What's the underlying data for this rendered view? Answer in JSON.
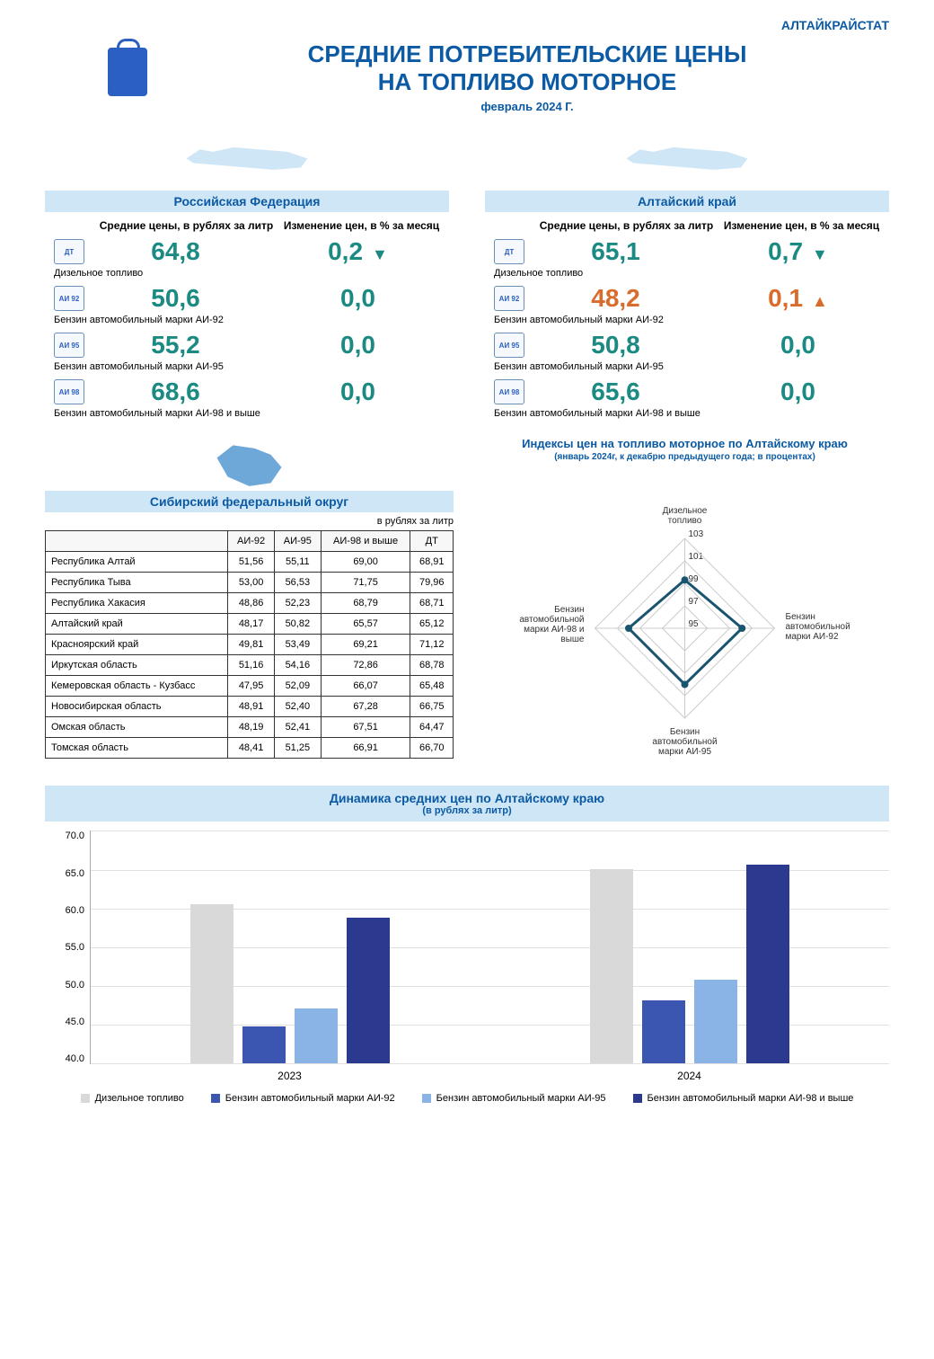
{
  "org": "АЛТАЙКРАЙСТАТ",
  "title_line1": "СРЕДНИЕ ПОТРЕБИТЕЛЬСКИЕ ЦЕНЫ",
  "title_line2": "НА ТОПЛИВО МОТОРНОЕ",
  "subtitle": "февраль 2024 Г.",
  "col_header_price": "Средние цены,\nв рублях за литр",
  "col_header_change": "Изменение цен,\nв % за месяц",
  "colors": {
    "brand_blue": "#0b5aa3",
    "light_blue": "#cfe6f7",
    "teal": "#1a8a82",
    "orange": "#d96b2b",
    "bar_grey": "#d9d9d9",
    "bar_blue1": "#3a56b0",
    "bar_blue2": "#8bb4e6",
    "bar_blue3": "#2b3a8f",
    "radar_line": "#1a5570"
  },
  "regions": [
    {
      "name": "Российская Федерация",
      "fuels": [
        {
          "icon": "ДТ",
          "label": "Дизельное топливо",
          "price": "64,8",
          "change": "0,2",
          "trend": "down",
          "color": "teal"
        },
        {
          "icon": "АИ 92",
          "label": "Бензин автомобильный марки АИ-92",
          "price": "50,6",
          "change": "0,0",
          "trend": "none",
          "color": "teal"
        },
        {
          "icon": "АИ 95",
          "label": "Бензин автомобильный марки АИ-95",
          "price": "55,2",
          "change": "0,0",
          "trend": "none",
          "color": "teal"
        },
        {
          "icon": "АИ 98",
          "label": "Бензин автомобильный марки АИ-98 и выше",
          "price": "68,6",
          "change": "0,0",
          "trend": "none",
          "color": "teal"
        }
      ]
    },
    {
      "name": "Алтайский край",
      "fuels": [
        {
          "icon": "ДТ",
          "label": "Дизельное топливо",
          "price": "65,1",
          "change": "0,7",
          "trend": "down",
          "color": "teal"
        },
        {
          "icon": "АИ 92",
          "label": "Бензин автомобильный марки АИ-92",
          "price": "48,2",
          "change": "0,1",
          "trend": "up",
          "color": "orange"
        },
        {
          "icon": "АИ 95",
          "label": "Бензин автомобильный марки АИ-95",
          "price": "50,8",
          "change": "0,0",
          "trend": "none",
          "color": "teal"
        },
        {
          "icon": "АИ 98",
          "label": "Бензин автомобильный марки АИ-98 и выше",
          "price": "65,6",
          "change": "0,0",
          "trend": "none",
          "color": "teal"
        }
      ]
    }
  ],
  "sfo": {
    "title": "Сибирский федеральный округ",
    "unit": "в рублях за литр",
    "columns": [
      "",
      "АИ-92",
      "АИ-95",
      "АИ-98 и выше",
      "ДТ"
    ],
    "rows": [
      [
        "Республика Алтай",
        "51,56",
        "55,11",
        "69,00",
        "68,91"
      ],
      [
        "Республика Тыва",
        "53,00",
        "56,53",
        "71,75",
        "79,96"
      ],
      [
        "Республика Хакасия",
        "48,86",
        "52,23",
        "68,79",
        "68,71"
      ],
      [
        "Алтайский край",
        "48,17",
        "50,82",
        "65,57",
        "65,12"
      ],
      [
        "Красноярский край",
        "49,81",
        "53,49",
        "69,21",
        "71,12"
      ],
      [
        "Иркутская область",
        "51,16",
        "54,16",
        "72,86",
        "68,78"
      ],
      [
        "Кемеровская область - Кузбасс",
        "47,95",
        "52,09",
        "66,07",
        "65,48"
      ],
      [
        "Новосибирская область",
        "48,91",
        "52,40",
        "67,28",
        "66,75"
      ],
      [
        "Омская область",
        "48,19",
        "52,41",
        "67,51",
        "64,47"
      ],
      [
        "Томская область",
        "48,41",
        "51,25",
        "66,91",
        "66,70"
      ]
    ]
  },
  "radar": {
    "title": "Индексы цен на топливо моторное по Алтайскому краю",
    "subtitle": "(январь 2024г, к декабрю предыдущего года; в процентах)",
    "axes": [
      "Дизельное топливо",
      "Бензин автомобильной марки АИ-92",
      "Бензин автомобильной марки АИ-95",
      "Бензин автомобильной марки АИ-98 и выше"
    ],
    "ticks": [
      95,
      97,
      99,
      101,
      103
    ],
    "values": [
      99.3,
      100.1,
      100.0,
      100.0
    ],
    "min": 95,
    "max": 103,
    "line_color": "#1a5570",
    "grid_color": "#cccccc"
  },
  "bar_chart": {
    "title": "Динамика средних цен по Алтайскому краю",
    "subtitle": "(в рублях за литр)",
    "y_min": 40,
    "y_max": 70,
    "y_step": 5,
    "y_ticks": [
      "70.0",
      "65.0",
      "60.0",
      "55.0",
      "50.0",
      "45.0",
      "40.0"
    ],
    "categories": [
      "2023",
      "2024"
    ],
    "series": [
      {
        "name": "Дизельное топливо",
        "color": "#d9d9d9",
        "values": [
          60.6,
          65.1
        ]
      },
      {
        "name": "Бензин автомобильный марки АИ-92",
        "color": "#3a56b0",
        "values": [
          44.8,
          48.2
        ]
      },
      {
        "name": "Бензин автомобильный марки АИ-95",
        "color": "#8bb4e6",
        "values": [
          47.1,
          50.8
        ]
      },
      {
        "name": "Бензин автомобильный марки АИ-98 и выше",
        "color": "#2b3a8f",
        "values": [
          58.8,
          65.6
        ]
      }
    ]
  }
}
